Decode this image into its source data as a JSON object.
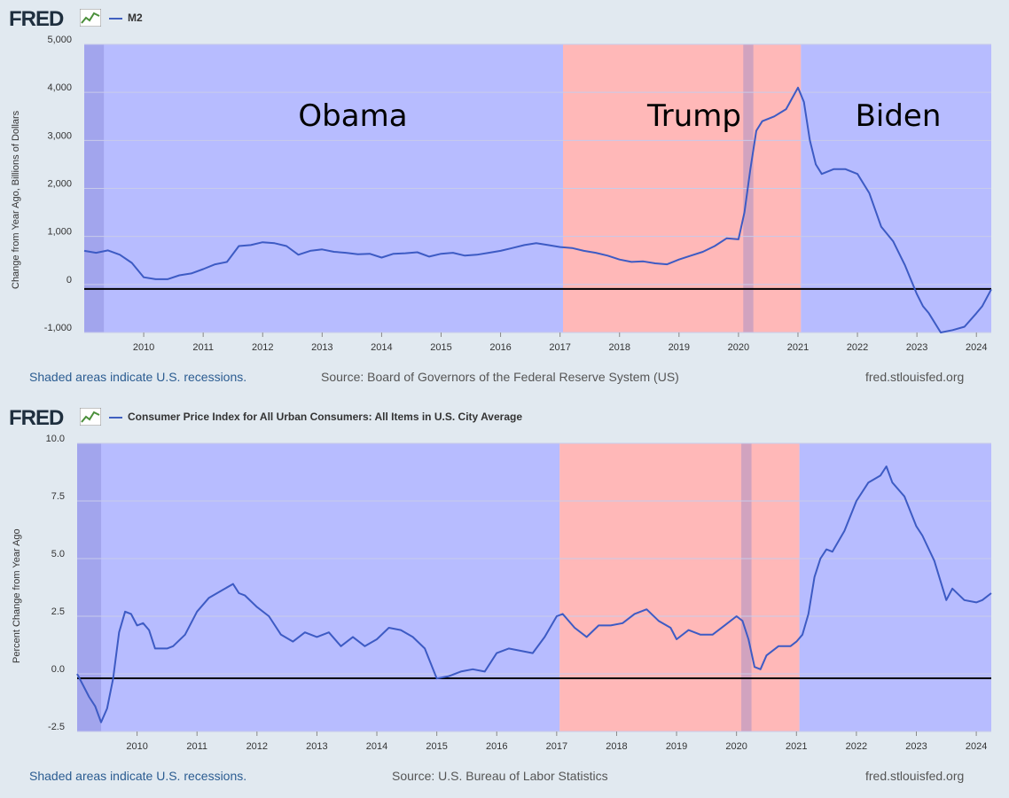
{
  "brand": {
    "logo_text": "FRED"
  },
  "footer": {
    "recessions_note": "Shaded areas indicate U.S. recessions.",
    "site": "fred.stlouisfed.org"
  },
  "colors": {
    "background": "#e1e9f0",
    "democrat_shade": "#b7bcff",
    "republican_shade": "#ffb8b8",
    "recession_shade": "#a0a4e6",
    "line": "#3d5bc4",
    "zero_line": "#000000"
  },
  "annotations": [
    "Obama",
    "Trump",
    "Biden"
  ],
  "chart_data": [
    {
      "type": "line",
      "legend": "M2",
      "ylabel": "Change from Year Ago, Billions of Dollars",
      "source": "Source: Board of Governors of the Federal Reserve System (US)",
      "ylim": [
        -1000,
        5000
      ],
      "yticks": [
        "-1,000",
        "0",
        "1,000",
        "2,000",
        "3,000",
        "4,000",
        "5,000"
      ],
      "ytick_values": [
        -1000,
        0,
        1000,
        2000,
        3000,
        4000,
        5000
      ],
      "xlim": [
        2009.0,
        2024.25
      ],
      "xticks": [
        "2010",
        "2011",
        "2012",
        "2013",
        "2014",
        "2015",
        "2016",
        "2017",
        "2018",
        "2019",
        "2020",
        "2021",
        "2022",
        "2023",
        "2024"
      ],
      "shading": [
        {
          "label": "Obama",
          "from": 2009.0,
          "to": 2017.05,
          "party": "democrat"
        },
        {
          "label": "Trump",
          "from": 2017.05,
          "to": 2021.05,
          "party": "republican"
        },
        {
          "label": "Biden",
          "from": 2021.05,
          "to": 2024.25,
          "party": "democrat"
        }
      ],
      "recessions": [
        {
          "from": 2009.0,
          "to": 2009.33
        },
        {
          "from": 2020.08,
          "to": 2020.25
        }
      ],
      "label_positions_value": [
        3300,
        3300,
        3300
      ],
      "x": [
        2009.0,
        2009.2,
        2009.4,
        2009.6,
        2009.8,
        2010.0,
        2010.2,
        2010.4,
        2010.6,
        2010.8,
        2011.0,
        2011.2,
        2011.4,
        2011.6,
        2011.8,
        2012.0,
        2012.2,
        2012.4,
        2012.6,
        2012.8,
        2013.0,
        2013.2,
        2013.4,
        2013.6,
        2013.8,
        2014.0,
        2014.2,
        2014.4,
        2014.6,
        2014.8,
        2015.0,
        2015.2,
        2015.4,
        2015.6,
        2015.8,
        2016.0,
        2016.2,
        2016.4,
        2016.6,
        2016.8,
        2017.0,
        2017.2,
        2017.4,
        2017.6,
        2017.8,
        2018.0,
        2018.2,
        2018.4,
        2018.6,
        2018.8,
        2019.0,
        2019.2,
        2019.4,
        2019.6,
        2019.8,
        2020.0,
        2020.1,
        2020.2,
        2020.3,
        2020.4,
        2020.6,
        2020.8,
        2021.0,
        2021.1,
        2021.2,
        2021.3,
        2021.4,
        2021.6,
        2021.8,
        2022.0,
        2022.2,
        2022.4,
        2022.6,
        2022.8,
        2023.0,
        2023.1,
        2023.2,
        2023.4,
        2023.6,
        2023.8,
        2024.0,
        2024.1,
        2024.25
      ],
      "values": [
        700,
        660,
        710,
        620,
        450,
        150,
        110,
        110,
        190,
        230,
        320,
        420,
        470,
        800,
        820,
        880,
        860,
        800,
        620,
        700,
        730,
        680,
        660,
        630,
        640,
        560,
        640,
        650,
        670,
        580,
        640,
        660,
        600,
        620,
        660,
        700,
        760,
        820,
        860,
        820,
        780,
        760,
        700,
        660,
        600,
        520,
        470,
        480,
        440,
        420,
        520,
        600,
        680,
        800,
        960,
        940,
        1500,
        2400,
        3200,
        3400,
        3500,
        3650,
        4100,
        3800,
        3000,
        2500,
        2300,
        2400,
        2400,
        2300,
        1900,
        1200,
        900,
        400,
        -200,
        -450,
        -600,
        -1000,
        -950,
        -880,
        -600,
        -450,
        -100
      ]
    },
    {
      "type": "line",
      "legend": "Consumer Price Index for All Urban Consumers: All Items in U.S. City Average",
      "ylabel": "Percent Change from Year Ago",
      "source": "Source: U.S. Bureau of Labor Statistics",
      "ylim": [
        -2.5,
        10.0
      ],
      "yticks": [
        "-2.5",
        "0.0",
        "2.5",
        "5.0",
        "7.5",
        "10.0"
      ],
      "ytick_values": [
        -2.5,
        0.0,
        2.5,
        5.0,
        7.5,
        10.0
      ],
      "xlim": [
        2009.0,
        2024.25
      ],
      "xticks": [
        "2010",
        "2011",
        "2012",
        "2013",
        "2014",
        "2015",
        "2016",
        "2017",
        "2018",
        "2019",
        "2020",
        "2021",
        "2022",
        "2023",
        "2024"
      ],
      "shading": [
        {
          "label": "",
          "from": 2009.0,
          "to": 2017.05,
          "party": "democrat"
        },
        {
          "label": "",
          "from": 2017.05,
          "to": 2021.05,
          "party": "republican"
        },
        {
          "label": "",
          "from": 2021.05,
          "to": 2024.25,
          "party": "democrat"
        }
      ],
      "recessions": [
        {
          "from": 2009.0,
          "to": 2009.4
        },
        {
          "from": 2020.08,
          "to": 2020.25
        }
      ],
      "x": [
        2009.0,
        2009.1,
        2009.2,
        2009.3,
        2009.4,
        2009.5,
        2009.6,
        2009.7,
        2009.8,
        2009.9,
        2010.0,
        2010.1,
        2010.2,
        2010.3,
        2010.4,
        2010.5,
        2010.6,
        2010.8,
        2011.0,
        2011.2,
        2011.4,
        2011.6,
        2011.7,
        2011.8,
        2012.0,
        2012.2,
        2012.4,
        2012.6,
        2012.8,
        2013.0,
        2013.2,
        2013.4,
        2013.6,
        2013.8,
        2014.0,
        2014.2,
        2014.4,
        2014.6,
        2014.8,
        2015.0,
        2015.2,
        2015.4,
        2015.6,
        2015.8,
        2016.0,
        2016.2,
        2016.4,
        2016.6,
        2016.8,
        2017.0,
        2017.1,
        2017.3,
        2017.5,
        2017.7,
        2017.9,
        2018.1,
        2018.3,
        2018.5,
        2018.7,
        2018.9,
        2019.0,
        2019.2,
        2019.4,
        2019.6,
        2019.8,
        2020.0,
        2020.1,
        2020.2,
        2020.3,
        2020.4,
        2020.5,
        2020.7,
        2020.9,
        2021.0,
        2021.1,
        2021.2,
        2021.3,
        2021.4,
        2021.5,
        2021.6,
        2021.8,
        2022.0,
        2022.2,
        2022.4,
        2022.5,
        2022.6,
        2022.8,
        2023.0,
        2023.1,
        2023.3,
        2023.5,
        2023.6,
        2023.8,
        2024.0,
        2024.1,
        2024.25
      ],
      "values": [
        0.0,
        -0.5,
        -1.0,
        -1.4,
        -2.1,
        -1.5,
        -0.2,
        1.8,
        2.7,
        2.6,
        2.1,
        2.2,
        1.9,
        1.1,
        1.1,
        1.1,
        1.2,
        1.7,
        2.7,
        3.3,
        3.6,
        3.9,
        3.5,
        3.4,
        2.9,
        2.5,
        1.7,
        1.4,
        1.8,
        1.6,
        1.8,
        1.2,
        1.6,
        1.2,
        1.5,
        2.0,
        1.9,
        1.6,
        1.1,
        -0.2,
        -0.1,
        0.1,
        0.2,
        0.1,
        0.9,
        1.1,
        1.0,
        0.9,
        1.6,
        2.5,
        2.6,
        2.0,
        1.6,
        2.1,
        2.1,
        2.2,
        2.6,
        2.8,
        2.3,
        2.0,
        1.5,
        1.9,
        1.7,
        1.7,
        2.1,
        2.5,
        2.3,
        1.5,
        0.3,
        0.2,
        0.8,
        1.2,
        1.2,
        1.4,
        1.7,
        2.6,
        4.2,
        5.0,
        5.4,
        5.3,
        6.2,
        7.5,
        8.3,
        8.6,
        9.0,
        8.3,
        7.7,
        6.4,
        6.0,
        4.9,
        3.2,
        3.7,
        3.2,
        3.1,
        3.2,
        3.5
      ]
    }
  ]
}
